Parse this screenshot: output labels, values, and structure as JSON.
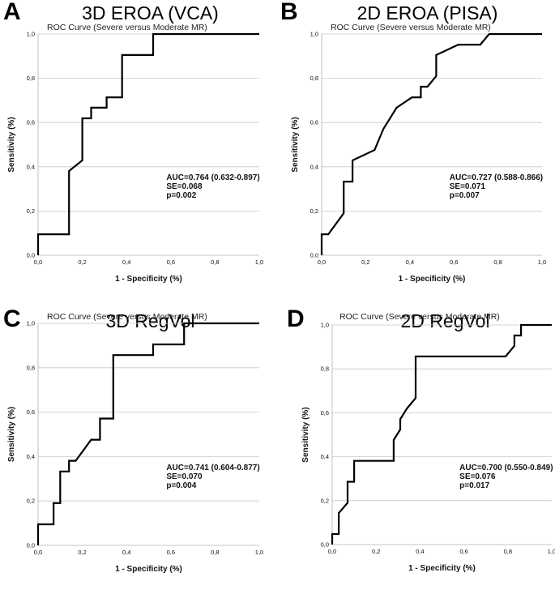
{
  "chart_data": [
    {
      "type": "line",
      "panel_label": "A",
      "title": "3D EROA (VCA)",
      "subtitle": "ROC Curve (Severe versus Moderate MR)",
      "xlabel": "1 - Specificity (%)",
      "ylabel": "Sensitivity (%)",
      "xlim": [
        0,
        1
      ],
      "ylim": [
        0,
        1
      ],
      "xticks": [
        "0,0",
        "0,2",
        "0,4",
        "0,6",
        "0,8",
        "1,0"
      ],
      "yticks": [
        "0,0",
        "0,2",
        "0,4",
        "0,6",
        "0,8",
        "1,0"
      ],
      "stats": [
        "AUC=0.764 (0.632-0.897)",
        "SE=0.068",
        "p=0.002"
      ],
      "x": [
        0,
        0,
        0.14,
        0.14,
        0.2,
        0.2,
        0.24,
        0.24,
        0.31,
        0.31,
        0.34,
        0.34,
        0.38,
        0.38,
        0.52,
        0.52,
        1.0
      ],
      "y": [
        0,
        0.095,
        0.095,
        0.381,
        0.429,
        0.619,
        0.619,
        0.667,
        0.667,
        0.714,
        0.714,
        0.714,
        0.714,
        0.905,
        0.905,
        1.0,
        1.0
      ]
    },
    {
      "type": "line",
      "panel_label": "B",
      "title": "2D EROA (PISA)",
      "subtitle": "ROC Curve (Severe versus Moderate MR)",
      "xlabel": "1 - Specificity (%)",
      "ylabel": "Sensitivity (%)",
      "xlim": [
        0,
        1
      ],
      "ylim": [
        0,
        1
      ],
      "xticks": [
        "0,0",
        "0,2",
        "0,4",
        "0,6",
        "0,8",
        "1,0"
      ],
      "yticks": [
        "0,0",
        "0,2",
        "0,4",
        "0,6",
        "0,8",
        "1,0"
      ],
      "stats": [
        "AUC=0.727 (0.588-0.866)",
        "SE=0.071",
        "p=0.007"
      ],
      "x": [
        0,
        0,
        0.03,
        0.1,
        0.1,
        0.14,
        0.14,
        0.24,
        0.28,
        0.34,
        0.41,
        0.45,
        0.45,
        0.48,
        0.52,
        0.52,
        0.62,
        0.66,
        0.72,
        0.76,
        0.83,
        1.0
      ],
      "y": [
        0,
        0.095,
        0.095,
        0.19,
        0.333,
        0.333,
        0.429,
        0.476,
        0.571,
        0.667,
        0.714,
        0.714,
        0.762,
        0.762,
        0.81,
        0.905,
        0.952,
        0.952,
        0.952,
        1.0,
        1.0,
        1.0
      ]
    },
    {
      "type": "line",
      "panel_label": "C",
      "title": "3D RegVol",
      "subtitle": "ROC Curve (Severe versus Moderate MR)",
      "xlabel": "1 - Specificity (%)",
      "ylabel": "Sensitivity (%)",
      "xlim": [
        0,
        1
      ],
      "ylim": [
        0,
        1
      ],
      "xticks": [
        "0,0",
        "0,2",
        "0,4",
        "0,6",
        "0,8",
        "1,0"
      ],
      "yticks": [
        "0,0",
        "0,2",
        "0,4",
        "0,6",
        "0,8",
        "1,0"
      ],
      "stats": [
        "AUC=0.741 (0.604-0.877)",
        "SE=0.070",
        "p=0.004"
      ],
      "x": [
        0,
        0,
        0.07,
        0.07,
        0.1,
        0.1,
        0.14,
        0.14,
        0.17,
        0.24,
        0.28,
        0.28,
        0.34,
        0.34,
        0.52,
        0.52,
        0.66,
        0.66,
        1.0
      ],
      "y": [
        0,
        0.095,
        0.095,
        0.19,
        0.19,
        0.333,
        0.333,
        0.381,
        0.381,
        0.476,
        0.476,
        0.571,
        0.571,
        0.857,
        0.857,
        0.905,
        0.905,
        1.0,
        1.0
      ]
    },
    {
      "type": "line",
      "panel_label": "D",
      "title": "2D RegVol",
      "subtitle": "ROC Curve (Severe versus Moderate MR)",
      "xlabel": "1 - Specificity (%)",
      "ylabel": "Sensitivity (%)",
      "xlim": [
        0,
        1
      ],
      "ylim": [
        0,
        1
      ],
      "xticks": [
        "0,0",
        "0,2",
        "0,4",
        "0,6",
        "0,8",
        "1,0"
      ],
      "yticks": [
        "0,0",
        "0,2",
        "0,4",
        "0,6",
        "0,8",
        "1,0"
      ],
      "stats": [
        "AUC=0.700 (0.550-0.849)",
        "SE=0.076",
        "p=0.017"
      ],
      "x": [
        0,
        0,
        0.03,
        0.03,
        0.07,
        0.07,
        0.1,
        0.1,
        0.28,
        0.28,
        0.31,
        0.31,
        0.34,
        0.38,
        0.38,
        0.76,
        0.79,
        0.83,
        0.83,
        0.86,
        0.86,
        1.0
      ],
      "y": [
        0,
        0.048,
        0.048,
        0.143,
        0.19,
        0.286,
        0.286,
        0.381,
        0.381,
        0.476,
        0.524,
        0.571,
        0.619,
        0.667,
        0.857,
        0.857,
        0.857,
        0.905,
        0.952,
        0.952,
        1.0,
        1.0
      ]
    }
  ]
}
